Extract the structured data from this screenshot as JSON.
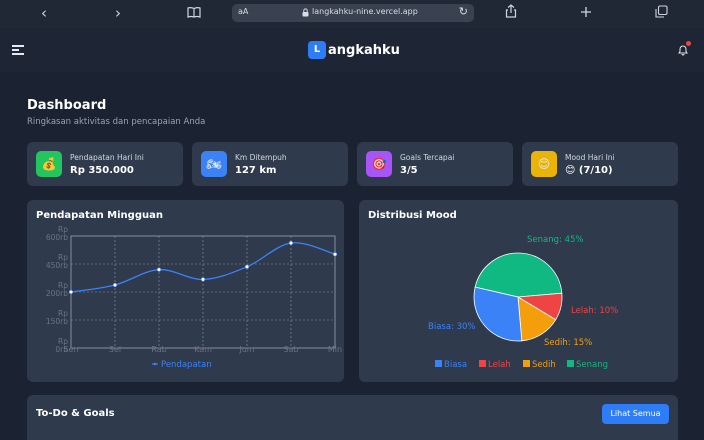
{
  "browser": {
    "aa_label": "aA",
    "url": "langkahku-nine.vercel.app"
  },
  "header": {
    "logo_letter": "L",
    "logo_text": "angkahku"
  },
  "dashboard": {
    "title": "Dashboard",
    "subtitle": "Ringkasan aktivitas dan pencapaian Anda"
  },
  "stats": [
    {
      "label": "Pendapatan Hari Ini",
      "value": "Rp 350.000",
      "icon": "money-bag-icon",
      "color": "#22c55e",
      "glyph": "💰"
    },
    {
      "label": "Km Ditempuh",
      "value": "127 km",
      "icon": "motorcycle-icon",
      "color": "#3b82f6",
      "glyph": "🏍"
    },
    {
      "label": "Goals Tercapai",
      "value": "3/5",
      "icon": "target-icon",
      "color": "#a855f7",
      "glyph": "🎯"
    },
    {
      "label": "Mood Hari Ini",
      "value": "😊 (7/10)",
      "icon": "smiley-icon",
      "color": "#eab308",
      "glyph": "😊"
    }
  ],
  "chart_data": [
    {
      "type": "line",
      "title": "Pendapatan Mingguan",
      "categories": [
        "Sen",
        "Sel",
        "Rab",
        "Kam",
        "Jum",
        "Sab",
        "Min"
      ],
      "series": [
        {
          "name": "Pendapatan",
          "values": [
            200000,
            225000,
            280000,
            245000,
            290000,
            375000,
            335000
          ]
        }
      ],
      "yticks": [
        "Rp 0rb",
        "Rp 150rb",
        "Rp 200rb",
        "Rp 450rb",
        "Rp 600rb"
      ],
      "ylim": [
        0,
        400000
      ],
      "grid": true,
      "legend": "bottom",
      "color": "#3b82f6"
    },
    {
      "type": "pie",
      "title": "Distribusi Mood",
      "categories": [
        "Biasa",
        "Lelah",
        "Sedih",
        "Senang"
      ],
      "values": [
        30,
        10,
        15,
        45
      ],
      "slice_labels": [
        "Biasa: 30%",
        "Lelah: 10%",
        "Sedih: 15%",
        "Senang: 45%"
      ],
      "colors": [
        "#3b82f6",
        "#ef4444",
        "#f59e0b",
        "#10b981"
      ],
      "legend": "bottom"
    }
  ],
  "todo": {
    "title": "To-Do & Goals",
    "button_label": "Lihat Semua"
  }
}
